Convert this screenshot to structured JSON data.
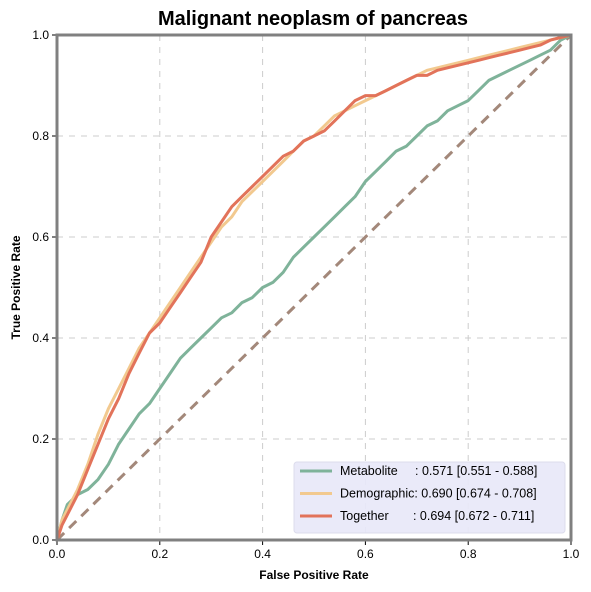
{
  "chart_data": {
    "type": "line",
    "title": "Malignant neoplasm of pancreas",
    "xlabel": "False Positive Rate",
    "ylabel": "True Positive Rate",
    "xlim": [
      0,
      1
    ],
    "ylim": [
      0,
      1
    ],
    "xticks": [
      "0.0",
      "0.2",
      "0.4",
      "0.6",
      "0.8",
      "1.0"
    ],
    "yticks": [
      "0.0",
      "0.2",
      "0.4",
      "0.6",
      "0.8",
      "1.0"
    ],
    "grid": true,
    "legend_position": "lower-right",
    "series": [
      {
        "name": "Metabolite",
        "legend_label": "Metabolite     : 0.571 [0.551 - 0.588]",
        "color": "#7fb39a",
        "x": [
          0,
          0.01,
          0.02,
          0.04,
          0.06,
          0.08,
          0.1,
          0.12,
          0.14,
          0.16,
          0.18,
          0.2,
          0.22,
          0.24,
          0.26,
          0.28,
          0.3,
          0.32,
          0.34,
          0.36,
          0.38,
          0.4,
          0.42,
          0.44,
          0.46,
          0.48,
          0.5,
          0.52,
          0.54,
          0.56,
          0.58,
          0.6,
          0.62,
          0.64,
          0.66,
          0.68,
          0.7,
          0.72,
          0.74,
          0.76,
          0.78,
          0.8,
          0.82,
          0.84,
          0.86,
          0.88,
          0.9,
          0.92,
          0.94,
          0.96,
          0.98,
          1.0
        ],
        "y": [
          0,
          0.04,
          0.07,
          0.09,
          0.1,
          0.12,
          0.15,
          0.19,
          0.22,
          0.25,
          0.27,
          0.3,
          0.33,
          0.36,
          0.38,
          0.4,
          0.42,
          0.44,
          0.45,
          0.47,
          0.48,
          0.5,
          0.51,
          0.53,
          0.56,
          0.58,
          0.6,
          0.62,
          0.64,
          0.66,
          0.68,
          0.71,
          0.73,
          0.75,
          0.77,
          0.78,
          0.8,
          0.82,
          0.83,
          0.85,
          0.86,
          0.87,
          0.89,
          0.91,
          0.92,
          0.93,
          0.94,
          0.95,
          0.96,
          0.97,
          0.99,
          1.0
        ]
      },
      {
        "name": "Demographic",
        "legend_label": "Demographic: 0.690 [0.674 - 0.708]",
        "color": "#f2c98f",
        "x": [
          0,
          0.01,
          0.02,
          0.04,
          0.06,
          0.08,
          0.1,
          0.12,
          0.14,
          0.16,
          0.18,
          0.2,
          0.22,
          0.24,
          0.26,
          0.28,
          0.3,
          0.32,
          0.34,
          0.36,
          0.38,
          0.4,
          0.42,
          0.44,
          0.46,
          0.48,
          0.5,
          0.52,
          0.54,
          0.56,
          0.58,
          0.6,
          0.62,
          0.64,
          0.66,
          0.68,
          0.7,
          0.72,
          0.74,
          0.76,
          0.78,
          0.8,
          0.82,
          0.84,
          0.86,
          0.88,
          0.9,
          0.92,
          0.94,
          0.96,
          0.98,
          1.0
        ],
        "y": [
          0,
          0.04,
          0.06,
          0.1,
          0.15,
          0.21,
          0.26,
          0.3,
          0.34,
          0.38,
          0.41,
          0.44,
          0.47,
          0.5,
          0.53,
          0.56,
          0.59,
          0.62,
          0.64,
          0.67,
          0.69,
          0.71,
          0.73,
          0.75,
          0.77,
          0.79,
          0.8,
          0.82,
          0.84,
          0.85,
          0.86,
          0.87,
          0.88,
          0.89,
          0.9,
          0.91,
          0.92,
          0.93,
          0.935,
          0.94,
          0.945,
          0.95,
          0.955,
          0.96,
          0.965,
          0.97,
          0.975,
          0.98,
          0.985,
          0.99,
          0.995,
          1.0
        ]
      },
      {
        "name": "Together",
        "legend_label": "Together       : 0.694 [0.672 - 0.711]",
        "color": "#e2735a",
        "x": [
          0,
          0.01,
          0.02,
          0.04,
          0.06,
          0.08,
          0.1,
          0.12,
          0.14,
          0.16,
          0.18,
          0.2,
          0.22,
          0.24,
          0.26,
          0.28,
          0.3,
          0.32,
          0.34,
          0.36,
          0.38,
          0.4,
          0.42,
          0.44,
          0.46,
          0.48,
          0.5,
          0.52,
          0.54,
          0.56,
          0.58,
          0.6,
          0.62,
          0.64,
          0.66,
          0.68,
          0.7,
          0.72,
          0.74,
          0.76,
          0.78,
          0.8,
          0.82,
          0.84,
          0.86,
          0.88,
          0.9,
          0.92,
          0.94,
          0.96,
          0.98,
          1.0
        ],
        "y": [
          0,
          0.03,
          0.05,
          0.09,
          0.14,
          0.19,
          0.24,
          0.28,
          0.33,
          0.37,
          0.41,
          0.43,
          0.46,
          0.49,
          0.52,
          0.55,
          0.6,
          0.63,
          0.66,
          0.68,
          0.7,
          0.72,
          0.74,
          0.76,
          0.77,
          0.79,
          0.8,
          0.81,
          0.83,
          0.85,
          0.87,
          0.88,
          0.88,
          0.89,
          0.9,
          0.91,
          0.92,
          0.92,
          0.93,
          0.935,
          0.94,
          0.945,
          0.95,
          0.955,
          0.96,
          0.965,
          0.97,
          0.975,
          0.98,
          0.99,
          0.995,
          1.0
        ]
      }
    ],
    "reference_line": {
      "color": "#a3887a",
      "x": [
        0,
        1
      ],
      "y": [
        0,
        1
      ]
    }
  }
}
